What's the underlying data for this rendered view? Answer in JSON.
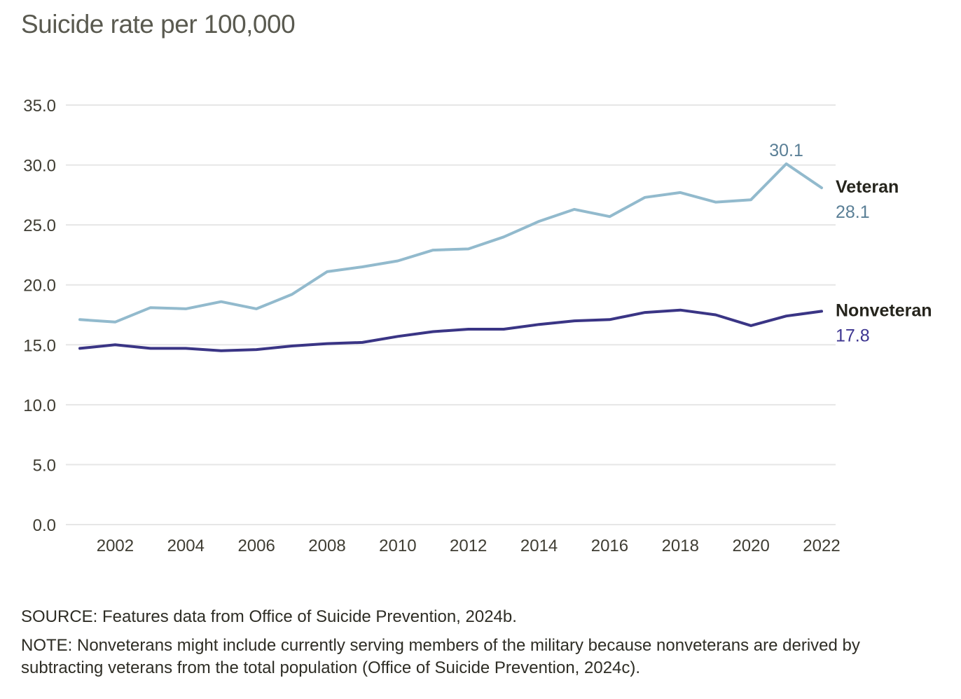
{
  "chart_data": {
    "type": "line",
    "title": "Suicide rate per 100,000",
    "xlabel": "",
    "ylabel": "",
    "x": [
      2001,
      2002,
      2003,
      2004,
      2005,
      2006,
      2007,
      2008,
      2009,
      2010,
      2011,
      2012,
      2013,
      2014,
      2015,
      2016,
      2017,
      2018,
      2019,
      2020,
      2021,
      2022
    ],
    "x_ticks": [
      "2002",
      "2004",
      "2006",
      "2008",
      "2010",
      "2012",
      "2014",
      "2016",
      "2018",
      "2020",
      "2022"
    ],
    "x_tick_values": [
      2002,
      2004,
      2006,
      2008,
      2010,
      2012,
      2014,
      2016,
      2018,
      2020,
      2022
    ],
    "y_ticks": [
      "0.0",
      "5.0",
      "10.0",
      "15.0",
      "20.0",
      "25.0",
      "30.0",
      "35.0"
    ],
    "y_tick_values": [
      0,
      5,
      10,
      15,
      20,
      25,
      30,
      35
    ],
    "xlim": [
      2001,
      2022
    ],
    "ylim": [
      0,
      35
    ],
    "grid": "horizontal",
    "legend": "inline-right",
    "series": [
      {
        "name": "Veteran",
        "color": "#92bacd",
        "label_color": "#5a7f96",
        "values": [
          17.1,
          16.9,
          18.1,
          18.0,
          18.6,
          18.0,
          19.2,
          21.1,
          21.5,
          22.0,
          22.9,
          23.0,
          24.0,
          25.3,
          26.3,
          25.7,
          27.3,
          27.7,
          26.9,
          27.1,
          30.1,
          28.1
        ],
        "end_label": "28.1",
        "peak_label": "30.1",
        "peak_year": 2021
      },
      {
        "name": "Nonveteran",
        "color": "#3a3585",
        "label_color": "#3d3590",
        "values": [
          14.7,
          15.0,
          14.7,
          14.7,
          14.5,
          14.6,
          14.9,
          15.1,
          15.2,
          15.7,
          16.1,
          16.3,
          16.3,
          16.7,
          17.0,
          17.1,
          17.7,
          17.9,
          17.5,
          16.6,
          17.4,
          17.8
        ],
        "end_label": "17.8"
      }
    ]
  },
  "footnotes": {
    "source": "SOURCE: Features data from Office of Suicide Prevention, 2024b.",
    "note": "NOTE: Nonveterans might include currently serving members of the military because nonveterans are derived by subtracting veterans from the total population (Office of Suicide Prevention, 2024c)."
  }
}
